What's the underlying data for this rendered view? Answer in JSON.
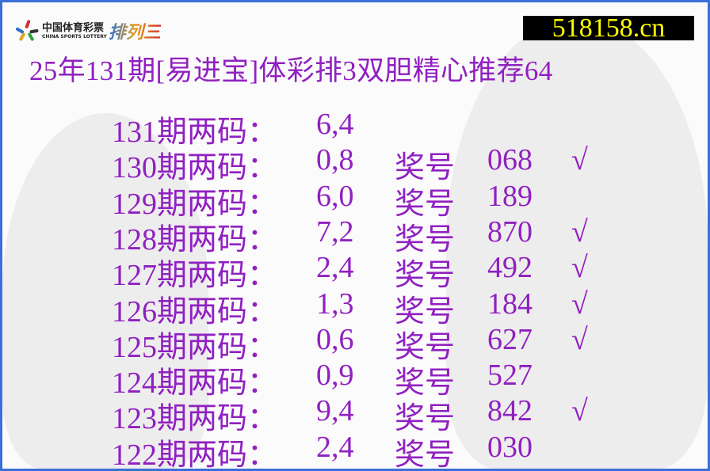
{
  "logo": {
    "cn": "中国体育彩票",
    "en": "CHINA SPORTS LOTTERY",
    "brand": "排列三"
  },
  "site": "518158.cn",
  "title": "25年131期[易进宝]体彩排3双胆精心推荐64",
  "colors": {
    "text": "#9020c0",
    "site_bg": "#000000",
    "site_text": "#ffff00",
    "border": "#3a6fd8"
  },
  "rows": [
    {
      "label": "131期两码：",
      "codes": "6,4",
      "prize_label": "",
      "number": "",
      "hit": ""
    },
    {
      "label": "130期两码：",
      "codes": "0,8",
      "prize_label": "奖号",
      "number": "068",
      "hit": "√"
    },
    {
      "label": "129期两码：",
      "codes": "6,0",
      "prize_label": "奖号",
      "number": "189",
      "hit": ""
    },
    {
      "label": "128期两码：",
      "codes": "7,2",
      "prize_label": "奖号",
      "number": "870",
      "hit": "√"
    },
    {
      "label": "127期两码：",
      "codes": "2,4",
      "prize_label": "奖号",
      "number": "492",
      "hit": "√"
    },
    {
      "label": "126期两码：",
      "codes": "1,3",
      "prize_label": "奖号",
      "number": "184",
      "hit": "√"
    },
    {
      "label": "125期两码：",
      "codes": "0,6",
      "prize_label": "奖号",
      "number": "627",
      "hit": "√"
    },
    {
      "label": "124期两码：",
      "codes": "0,9",
      "prize_label": "奖号",
      "number": "527",
      "hit": ""
    },
    {
      "label": "123期两码：",
      "codes": "9,4",
      "prize_label": "奖号",
      "number": "842",
      "hit": "√"
    },
    {
      "label": "122期两码：",
      "codes": "2,4",
      "prize_label": "奖号",
      "number": "030",
      "hit": ""
    }
  ]
}
